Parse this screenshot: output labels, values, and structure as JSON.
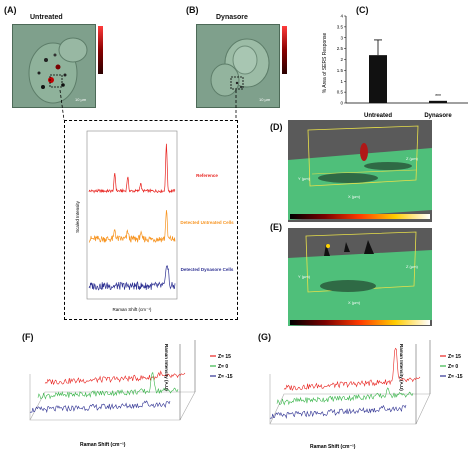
{
  "panelA": {
    "label": "(A)",
    "title": "Untreated",
    "scale": "10 µm"
  },
  "panelB": {
    "label": "(B)",
    "title": "Dynasore",
    "scale": "10 µm"
  },
  "panelC": {
    "label": "(C)",
    "ylabel": "% Area of SERS Response",
    "significance": "***"
  },
  "panelD": {
    "label": "(D)",
    "axis_a": "Y (µm)",
    "axis_b": "X (µm)",
    "axis_c": "Z (µm)"
  },
  "panelE": {
    "label": "(E)",
    "axis_a": "Y (µm)",
    "axis_b": "X (µm)",
    "axis_c": "Z (µm)"
  },
  "panelF": {
    "label": "(F)",
    "xlabel": "Raman Shift (cm⁻¹)",
    "ylabel": "Raman Intensity (A.U)",
    "legend": [
      {
        "text": "Z= 15",
        "color": "#e8231f"
      },
      {
        "text": "Z= 0",
        "color": "#39b54a"
      },
      {
        "text": "Z= -15",
        "color": "#2e3192"
      }
    ]
  },
  "panelG": {
    "label": "(G)",
    "xlabel": "Raman Shift (cm⁻¹)",
    "ylabel": "Raman Intensity (A.U)",
    "legend": [
      {
        "text": "Z= 15",
        "color": "#e8231f"
      },
      {
        "text": "Z= 0",
        "color": "#39b54a"
      },
      {
        "text": "Z= -15",
        "color": "#2e3192"
      }
    ]
  },
  "spectra": {
    "ylabel": "Scaled Intensity",
    "xlabel": "Raman Shift (cm⁻¹)",
    "series": [
      {
        "name": "Reference",
        "color": "#e8231f"
      },
      {
        "name": "Detected Untreated Cells",
        "color": "#f7931e"
      },
      {
        "name": "Detected Dynasore Cells",
        "color": "#2e3192"
      }
    ]
  },
  "chart_data": {
    "type": "bar",
    "categories": [
      "Untreated",
      "Dynasore"
    ],
    "values": [
      2.2,
      0.1
    ],
    "errors": [
      0.7,
      0.05
    ],
    "ylabel": "% Area of SERS Response",
    "ylim": [
      0,
      4
    ],
    "yticks": [
      "0",
      "0.5",
      "1",
      "1.5",
      "2",
      "2.5",
      "3",
      "3.5",
      "4"
    ]
  },
  "colors": {
    "micro_bg": "#7fa08c",
    "green_3d": "#4fbf7a"
  }
}
